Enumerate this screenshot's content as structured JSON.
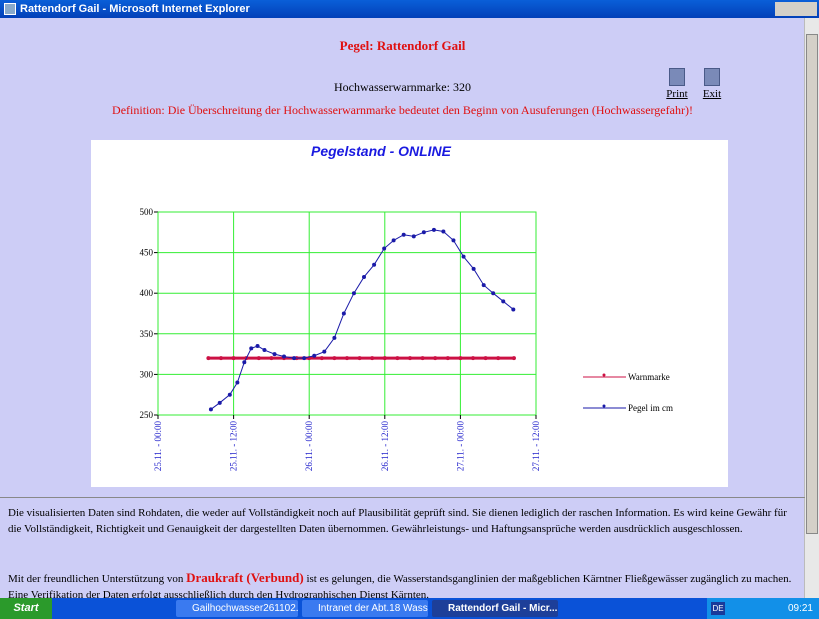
{
  "window": {
    "title": "Rattendorf Gail - Microsoft Internet Explorer"
  },
  "header": {
    "title": "Pegel: Rattendorf Gail",
    "warning_mark": "Hochwasserwarnmarke: 320",
    "definition": "Definition: Die Überschreitung der Hochwasserwarnmarke bedeutet den Beginn von Ausuferungen (Hochwassergefahr)!",
    "print": "Print",
    "exit": "Exit"
  },
  "chart_data": {
    "type": "line",
    "title": "Pegelstand -  ONLINE",
    "xlim": [
      0,
      60
    ],
    "xticks": [
      {
        "value": 0,
        "label": "25.11. - 00:00"
      },
      {
        "value": 12,
        "label": "25.11. - 12:00"
      },
      {
        "value": 24,
        "label": "26.11. - 00:00"
      },
      {
        "value": 36,
        "label": "26.11. - 12:00"
      },
      {
        "value": 48,
        "label": "27.11. - 00:00"
      },
      {
        "value": 60,
        "label": "27.11. - 12:00"
      }
    ],
    "ylim": [
      250,
      500
    ],
    "yticks": [
      250,
      300,
      350,
      400,
      450,
      500
    ],
    "grid": true,
    "grid_color": "#33ee33",
    "series": [
      {
        "name": "Warnmarke",
        "color": "#cc1144",
        "x": [
          8,
          10,
          12,
          14,
          16,
          18,
          20,
          22,
          24,
          26,
          28,
          30,
          32,
          34,
          36,
          38,
          40,
          42,
          44,
          46,
          48,
          50,
          52,
          54,
          56.5
        ],
        "values": [
          320,
          320,
          320,
          320,
          320,
          320,
          320,
          320,
          320,
          320,
          320,
          320,
          320,
          320,
          320,
          320,
          320,
          320,
          320,
          320,
          320,
          320,
          320,
          320,
          320
        ]
      },
      {
        "name": "Pegel im cm",
        "color": "#1a1aa8",
        "x": [
          8.4,
          9.8,
          11.4,
          12.6,
          13.7,
          14.8,
          15.8,
          16.9,
          18.5,
          20,
          21.6,
          23.2,
          24.8,
          26.4,
          28,
          29.5,
          31.1,
          32.7,
          34.3,
          35.9,
          37.4,
          39,
          40.6,
          42.2,
          43.8,
          45.3,
          46.9,
          48.5,
          50.1,
          51.7,
          53.2,
          54.8,
          56.4
        ],
        "values": [
          257,
          265,
          275,
          290,
          315,
          332,
          335,
          330,
          325,
          322,
          320,
          320,
          323,
          328,
          345,
          375,
          400,
          420,
          435,
          455,
          465,
          472,
          470,
          475,
          478,
          476,
          465,
          445,
          430,
          410,
          400,
          390,
          380
        ]
      }
    ]
  },
  "text": {
    "disclaimer": "Die visualisierten Daten sind Rohdaten, die weder auf Vollständigkeit noch auf Plausibilität geprüft sind. Sie dienen lediglich der raschen Information. Es wird keine Gewähr für die Vollständigkeit, Richtigkeit und Genauigkeit der dargestellten Daten übernommen. Gewährleistungs- und Haftungsansprüche werden ausdrücklich ausgeschlossen.",
    "support_before": "Mit der freundlichen Unterstützung von",
    "support_name": "Draukraft (Verbund)",
    "support_after": "ist es gelungen, die Wasserstandsganglinien der maßgeblichen Kärntner Fließgewässer zugänglich zu machen. Eine Verifikation der Daten erfolgt ausschließlich durch den Hydrographischen Dienst Kärnten."
  },
  "taskbar": {
    "start": "Start",
    "tasks": [
      "Gailhochwasser261102.d...",
      "Intranet der Abt.18 Wass...",
      "Rattendorf Gail - Micr..."
    ],
    "language": "DE",
    "clock": "09:21"
  }
}
